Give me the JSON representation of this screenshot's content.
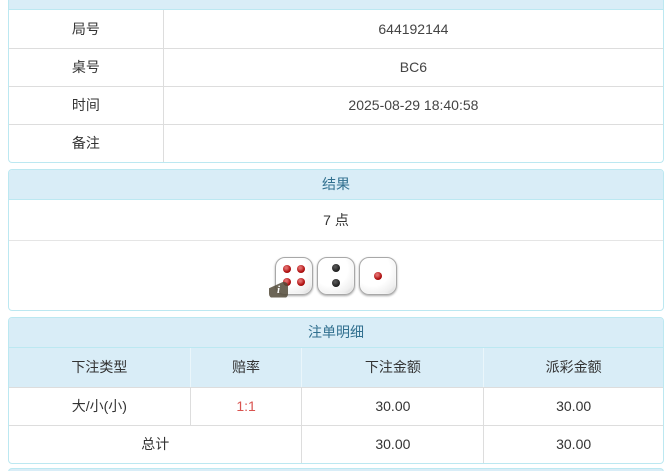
{
  "colors": {
    "panel_border": "#bce8f1",
    "header_bg": "#d9edf7",
    "header_text": "#31708f",
    "row_divider": "#dddddd",
    "body_text": "#333333",
    "odds_red": "#d9534f"
  },
  "info_table": {
    "rows": [
      {
        "label": "局号",
        "value": "644192144"
      },
      {
        "label": "桌号",
        "value": "BC6"
      },
      {
        "label": "时间",
        "value": "2025-08-29 18:40:58"
      },
      {
        "label": "备注",
        "value": ""
      }
    ]
  },
  "result_panel": {
    "title": "结果",
    "points": "7 点",
    "dice": [
      {
        "value": 4,
        "color": "red"
      },
      {
        "value": 2,
        "color": "black"
      },
      {
        "value": 1,
        "color": "red"
      }
    ],
    "info_badge": "i"
  },
  "bets_panel": {
    "title": "注单明细",
    "columns": [
      "下注类型",
      "赔率",
      "下注金额",
      "派彩金额"
    ],
    "rows": [
      {
        "bet_type": "大/小(小)",
        "odds": "1:1",
        "bet_amount": "30.00",
        "payout_amount": "30.00"
      }
    ],
    "total_row": {
      "label": "总计",
      "bet_amount": "30.00",
      "payout_amount": "30.00"
    }
  }
}
